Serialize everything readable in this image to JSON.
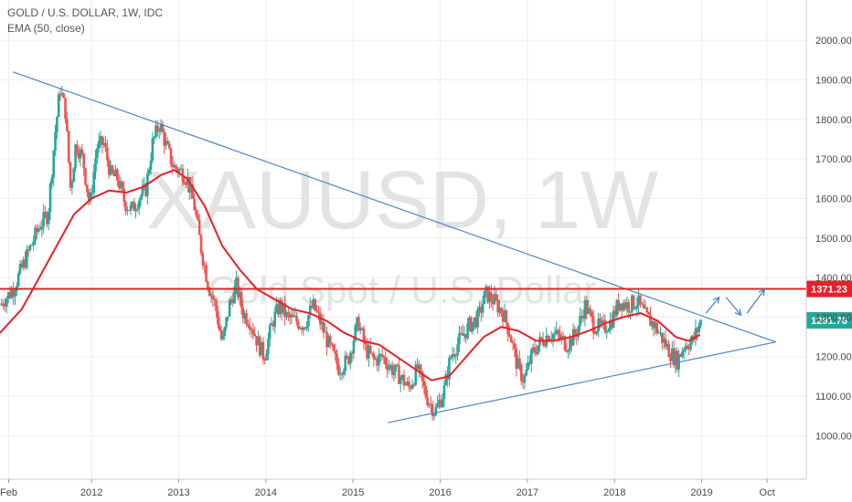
{
  "legend": {
    "symbol": "GOLD / U.S. DOLLAR, 1W, IDC",
    "indicator": "EMA (50, close)"
  },
  "watermark": {
    "ticker": "XAUUSD, 1W",
    "description": "Gold Spot / U.S. Dollar"
  },
  "colors": {
    "up_candle": "#26a69a",
    "down_candle": "#ef5350",
    "ema": "#e8202a",
    "trendline": "#4a86c8",
    "resistance": "#e8202a",
    "price_tag": "#26a69a",
    "grid": "#eeeeee"
  },
  "chart_data": {
    "type": "candlestick",
    "x_axis": {
      "labels": [
        "Feb",
        "2012",
        "2013",
        "2014",
        "2015",
        "2016",
        "2017",
        "2018",
        "2019",
        "Oct"
      ],
      "positions": [
        2011.05,
        2012.0,
        2013.0,
        2014.0,
        2015.0,
        2016.0,
        2017.0,
        2018.0,
        2019.0,
        2019.75
      ],
      "range": [
        2010.95,
        2020.2
      ]
    },
    "y_axis": {
      "ticks": [
        1000,
        1100,
        1200,
        1300,
        1400,
        1500,
        1600,
        1700,
        1800,
        1900,
        2000
      ],
      "tick_labels": [
        "1000.00",
        "1100.00",
        "1200.00",
        "1300.00",
        "1400.00",
        "1500.00",
        "1600.00",
        "1700.00",
        "1800.00",
        "1900.00",
        "2000.00"
      ],
      "range": [
        890,
        2102
      ]
    },
    "price_path": [
      [
        2010.95,
        1330
      ],
      [
        2011.1,
        1370
      ],
      [
        2011.25,
        1450
      ],
      [
        2011.4,
        1530
      ],
      [
        2011.5,
        1560
      ],
      [
        2011.58,
        1760
      ],
      [
        2011.64,
        1880
      ],
      [
        2011.7,
        1820
      ],
      [
        2011.76,
        1620
      ],
      [
        2011.82,
        1740
      ],
      [
        2011.9,
        1700
      ],
      [
        2011.98,
        1580
      ],
      [
        2012.06,
        1730
      ],
      [
        2012.14,
        1740
      ],
      [
        2012.22,
        1660
      ],
      [
        2012.3,
        1650
      ],
      [
        2012.38,
        1590
      ],
      [
        2012.46,
        1570
      ],
      [
        2012.54,
        1600
      ],
      [
        2012.62,
        1620
      ],
      [
        2012.7,
        1740
      ],
      [
        2012.78,
        1790
      ],
      [
        2012.86,
        1730
      ],
      [
        2012.94,
        1680
      ],
      [
        2013.02,
        1670
      ],
      [
        2013.1,
        1650
      ],
      [
        2013.18,
        1580
      ],
      [
        2013.26,
        1470
      ],
      [
        2013.34,
        1380
      ],
      [
        2013.42,
        1330
      ],
      [
        2013.5,
        1230
      ],
      [
        2013.58,
        1330
      ],
      [
        2013.66,
        1380
      ],
      [
        2013.74,
        1310
      ],
      [
        2013.82,
        1290
      ],
      [
        2013.9,
        1240
      ],
      [
        2013.98,
        1200
      ],
      [
        2014.08,
        1290
      ],
      [
        2014.16,
        1330
      ],
      [
        2014.24,
        1300
      ],
      [
        2014.34,
        1290
      ],
      [
        2014.44,
        1280
      ],
      [
        2014.54,
        1330
      ],
      [
        2014.62,
        1290
      ],
      [
        2014.72,
        1230
      ],
      [
        2014.84,
        1170
      ],
      [
        2014.94,
        1190
      ],
      [
        2015.06,
        1290
      ],
      [
        2015.14,
        1220
      ],
      [
        2015.24,
        1190
      ],
      [
        2015.34,
        1200
      ],
      [
        2015.44,
        1170
      ],
      [
        2015.54,
        1150
      ],
      [
        2015.64,
        1120
      ],
      [
        2015.74,
        1170
      ],
      [
        2015.84,
        1100
      ],
      [
        2015.94,
        1060
      ],
      [
        2016.04,
        1110
      ],
      [
        2016.12,
        1200
      ],
      [
        2016.22,
        1240
      ],
      [
        2016.34,
        1280
      ],
      [
        2016.44,
        1300
      ],
      [
        2016.52,
        1360
      ],
      [
        2016.62,
        1340
      ],
      [
        2016.72,
        1310
      ],
      [
        2016.8,
        1260
      ],
      [
        2016.88,
        1180
      ],
      [
        2016.96,
        1140
      ],
      [
        2017.06,
        1210
      ],
      [
        2017.16,
        1240
      ],
      [
        2017.26,
        1260
      ],
      [
        2017.36,
        1250
      ],
      [
        2017.46,
        1230
      ],
      [
        2017.56,
        1260
      ],
      [
        2017.66,
        1330
      ],
      [
        2017.76,
        1280
      ],
      [
        2017.86,
        1270
      ],
      [
        2017.96,
        1290
      ],
      [
        2018.06,
        1340
      ],
      [
        2018.16,
        1330
      ],
      [
        2018.26,
        1340
      ],
      [
        2018.36,
        1300
      ],
      [
        2018.46,
        1280
      ],
      [
        2018.56,
        1240
      ],
      [
        2018.64,
        1210
      ],
      [
        2018.72,
        1190
      ],
      [
        2018.8,
        1230
      ],
      [
        2018.9,
        1240
      ],
      [
        2018.98,
        1285
      ],
      [
        2019.0,
        1291
      ]
    ],
    "ema_path": [
      [
        2010.95,
        1260
      ],
      [
        2011.2,
        1320
      ],
      [
        2011.4,
        1400
      ],
      [
        2011.6,
        1480
      ],
      [
        2011.8,
        1560
      ],
      [
        2012.0,
        1600
      ],
      [
        2012.2,
        1620
      ],
      [
        2012.4,
        1615
      ],
      [
        2012.6,
        1630
      ],
      [
        2012.8,
        1660
      ],
      [
        2012.95,
        1672
      ],
      [
        2013.1,
        1650
      ],
      [
        2013.3,
        1580
      ],
      [
        2013.5,
        1480
      ],
      [
        2013.7,
        1420
      ],
      [
        2013.9,
        1370
      ],
      [
        2014.1,
        1345
      ],
      [
        2014.3,
        1320
      ],
      [
        2014.5,
        1310
      ],
      [
        2014.7,
        1290
      ],
      [
        2014.9,
        1260
      ],
      [
        2015.1,
        1240
      ],
      [
        2015.3,
        1230
      ],
      [
        2015.5,
        1200
      ],
      [
        2015.7,
        1170
      ],
      [
        2015.9,
        1140
      ],
      [
        2016.1,
        1150
      ],
      [
        2016.3,
        1200
      ],
      [
        2016.5,
        1250
      ],
      [
        2016.7,
        1275
      ],
      [
        2016.9,
        1265
      ],
      [
        2017.1,
        1240
      ],
      [
        2017.3,
        1240
      ],
      [
        2017.5,
        1250
      ],
      [
        2017.7,
        1265
      ],
      [
        2017.9,
        1285
      ],
      [
        2018.1,
        1300
      ],
      [
        2018.3,
        1310
      ],
      [
        2018.5,
        1290
      ],
      [
        2018.7,
        1250
      ],
      [
        2018.85,
        1240
      ],
      [
        2018.98,
        1255
      ]
    ],
    "trendlines": [
      {
        "name": "upper",
        "from": [
          2011.1,
          1920
        ],
        "to": [
          2019.85,
          1237
        ]
      },
      {
        "name": "lower",
        "from": [
          2015.4,
          1033
        ],
        "to": [
          2019.85,
          1237
        ]
      }
    ],
    "horizontal_levels": [
      {
        "price": 1371.23,
        "label": "1371.23"
      }
    ],
    "current_price": {
      "price": 1291.76,
      "label": "1291.76"
    },
    "projection_arrows": [
      {
        "from": [
          2019.05,
          1310
        ],
        "to": [
          2019.2,
          1350
        ]
      },
      {
        "from": [
          2019.28,
          1350
        ],
        "to": [
          2019.45,
          1305
        ]
      },
      {
        "from": [
          2019.52,
          1310
        ],
        "to": [
          2019.72,
          1370
        ]
      }
    ]
  }
}
